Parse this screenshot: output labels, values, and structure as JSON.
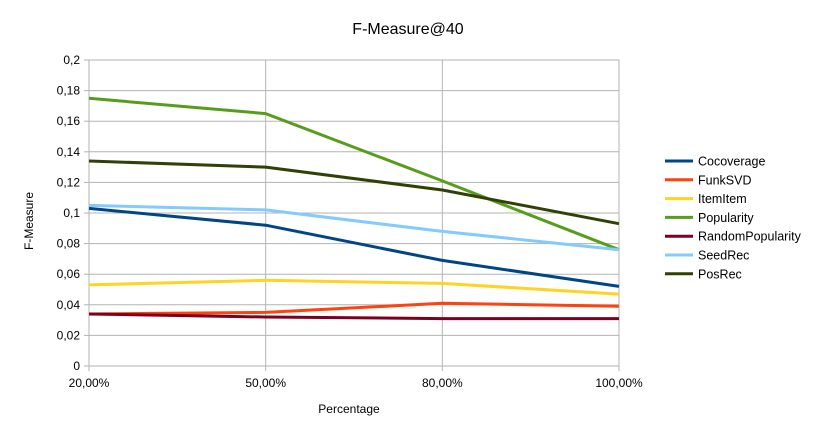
{
  "chart_data": {
    "type": "line",
    "title": "F-Measure@40",
    "xlabel": "Percentage",
    "ylabel": "F-Measure",
    "categories": [
      "20,00%",
      "50,00%",
      "80,00%",
      "100,00%"
    ],
    "ylim": [
      0,
      0.2
    ],
    "yticks": [
      "0",
      "0,02",
      "0,04",
      "0,06",
      "0,08",
      "0,1",
      "0,12",
      "0,14",
      "0,16",
      "0,18",
      "0,2"
    ],
    "grid": true,
    "legend_position": "right",
    "series": [
      {
        "name": "Cocoverage",
        "color": "#004586",
        "values": [
          0.103,
          0.092,
          0.069,
          0.052
        ]
      },
      {
        "name": "FunkSVD",
        "color": "#ff420e",
        "values": [
          0.034,
          0.035,
          0.041,
          0.039
        ]
      },
      {
        "name": "ItemItem",
        "color": "#ffd320",
        "values": [
          0.053,
          0.056,
          0.054,
          0.047
        ]
      },
      {
        "name": "Popularity",
        "color": "#579d1c",
        "values": [
          0.175,
          0.165,
          0.121,
          0.076
        ]
      },
      {
        "name": "RandomPopularity",
        "color": "#7e0021",
        "values": [
          0.034,
          0.032,
          0.031,
          0.031
        ]
      },
      {
        "name": "SeedRec",
        "color": "#83caff",
        "values": [
          0.105,
          0.102,
          0.088,
          0.076
        ]
      },
      {
        "name": "PosRec",
        "color": "#314004",
        "values": [
          0.134,
          0.13,
          0.115,
          0.093
        ]
      }
    ]
  }
}
